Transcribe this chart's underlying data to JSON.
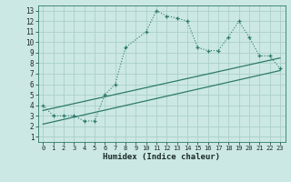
{
  "xlabel": "Humidex (Indice chaleur)",
  "ylabel": "",
  "bg_color": "#cce8e4",
  "grid_color": "#aad0ca",
  "line_color": "#2d7a6a",
  "xlim": [
    -0.5,
    23.5
  ],
  "ylim": [
    0.5,
    13.5
  ],
  "xticks": [
    0,
    1,
    2,
    3,
    4,
    5,
    6,
    7,
    8,
    9,
    10,
    11,
    12,
    13,
    14,
    15,
    16,
    17,
    18,
    19,
    20,
    21,
    22,
    23
  ],
  "yticks": [
    1,
    2,
    3,
    4,
    5,
    6,
    7,
    8,
    9,
    10,
    11,
    12,
    13
  ],
  "line1_x": [
    0,
    1,
    2,
    3,
    4,
    5,
    6,
    7,
    8,
    10,
    11,
    12,
    13,
    14,
    15,
    16,
    17,
    18,
    19,
    20,
    21,
    22,
    23
  ],
  "line1_y": [
    4,
    3,
    3,
    3,
    2.5,
    2.5,
    5,
    6,
    9.5,
    11,
    13,
    12.5,
    12.3,
    12,
    9.5,
    9.2,
    9.2,
    10.5,
    12,
    10.5,
    8.7,
    8.7,
    7.5
  ],
  "line2_x": [
    0,
    23
  ],
  "line2_y": [
    3.5,
    8.5
  ],
  "line3_x": [
    0,
    23
  ],
  "line3_y": [
    2.2,
    7.3
  ]
}
